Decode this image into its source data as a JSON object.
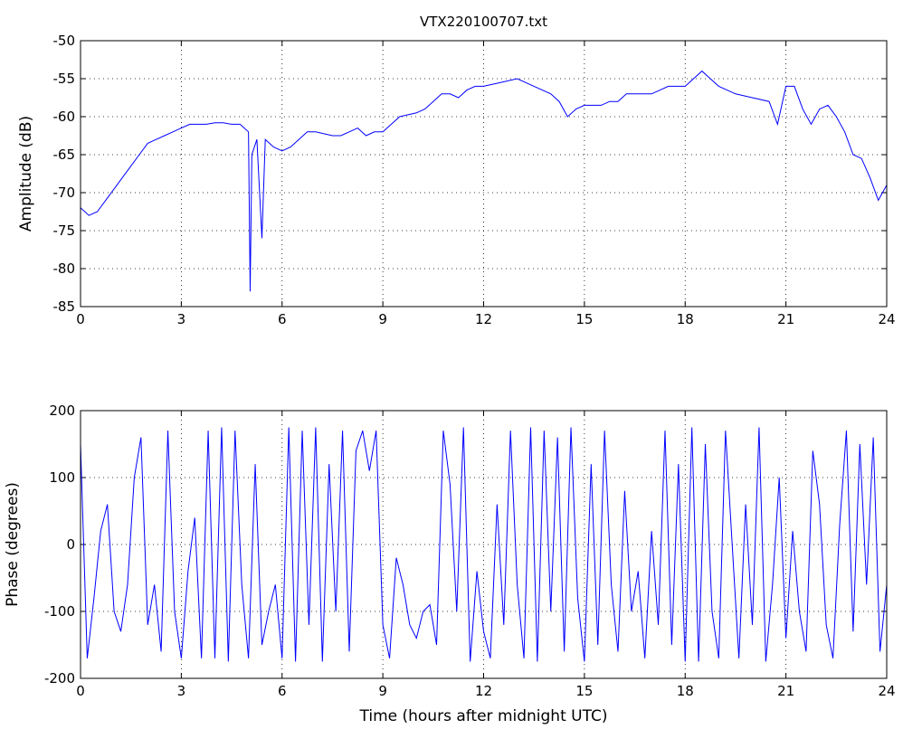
{
  "chart_data": [
    {
      "type": "line",
      "title": "VTX220100707.txt",
      "y_label": "Amplitude (dB)",
      "x": [
        0,
        0.25,
        0.5,
        0.75,
        1,
        1.25,
        1.5,
        1.75,
        2,
        2.25,
        2.5,
        2.75,
        3,
        3.25,
        3.5,
        3.75,
        4,
        4.25,
        4.5,
        4.75,
        5,
        5.05,
        5.1,
        5.25,
        5.4,
        5.5,
        5.75,
        6,
        6.25,
        6.5,
        6.75,
        7,
        7.5,
        7.75,
        8,
        8.25,
        8.5,
        8.75,
        9,
        9.25,
        9.5,
        10,
        10.25,
        10.5,
        10.75,
        11,
        11.25,
        11.5,
        11.75,
        12,
        12.5,
        13,
        13.5,
        14,
        14.25,
        14.5,
        14.75,
        15,
        15.5,
        15.75,
        16,
        16.25,
        16.5,
        17,
        17.5,
        18,
        18.25,
        18.5,
        18.75,
        19,
        19.5,
        20,
        20.5,
        20.75,
        21,
        21.25,
        21.5,
        21.75,
        22,
        22.25,
        22.5,
        22.75,
        23,
        23.25,
        23.5,
        23.75,
        24
      ],
      "series": [
        {
          "name": "amplitude",
          "color": "#0000ff",
          "values": [
            -72,
            -73,
            -72.5,
            -71,
            -69.5,
            -68,
            -66.5,
            -65,
            -63.5,
            -63,
            -62.5,
            -62,
            -61.5,
            -61,
            -61,
            -61,
            -60.8,
            -60.8,
            -61,
            -61,
            -62,
            -83,
            -65,
            -63,
            -76,
            -63,
            -64,
            -64.5,
            -64,
            -63,
            -62,
            -62,
            -62.5,
            -62.5,
            -62,
            -61.5,
            -62.5,
            -62,
            -62,
            -61,
            -60,
            -59.5,
            -59,
            -58,
            -57,
            -57,
            -57.5,
            -56.5,
            -56,
            -56,
            -55.5,
            -55,
            -56,
            -57,
            -58,
            -60,
            -59,
            -58.5,
            -58.5,
            -58,
            -58,
            -57,
            -57,
            -57,
            -56,
            -56,
            -55,
            -54,
            -55,
            -56,
            -57,
            -57.5,
            -58,
            -61,
            -56,
            -56,
            -59,
            -61,
            -59,
            -58.5,
            -60,
            -62,
            -65,
            -65.5,
            -68,
            -71,
            -69
          ]
        }
      ],
      "xlim": [
        0,
        24
      ],
      "xticks": [
        0,
        3,
        6,
        9,
        12,
        15,
        18,
        21,
        24
      ],
      "ylim": [
        -85,
        -50
      ],
      "yticks": [
        -85,
        -80,
        -75,
        -70,
        -65,
        -60,
        -55,
        -50
      ],
      "grid": true
    },
    {
      "type": "line",
      "x_label": "Time (hours after midnight UTC)",
      "y_label": "Phase (degrees)",
      "x": [
        0,
        0.2,
        0.4,
        0.6,
        0.8,
        1,
        1.2,
        1.4,
        1.6,
        1.8,
        2,
        2.2,
        2.4,
        2.6,
        2.8,
        3,
        3.2,
        3.4,
        3.6,
        3.8,
        4,
        4.2,
        4.4,
        4.6,
        4.8,
        5,
        5.2,
        5.4,
        5.6,
        5.8,
        6,
        6.2,
        6.4,
        6.6,
        6.8,
        7,
        7.2,
        7.4,
        7.6,
        7.8,
        8,
        8.2,
        8.4,
        8.6,
        8.8,
        9,
        9.2,
        9.4,
        9.6,
        9.8,
        10,
        10.2,
        10.4,
        10.6,
        10.8,
        11,
        11.2,
        11.4,
        11.6,
        11.8,
        12,
        12.2,
        12.4,
        12.6,
        12.8,
        13,
        13.2,
        13.4,
        13.6,
        13.8,
        14,
        14.2,
        14.4,
        14.6,
        14.8,
        15,
        15.2,
        15.4,
        15.6,
        15.8,
        16,
        16.2,
        16.4,
        16.6,
        16.8,
        17,
        17.2,
        17.4,
        17.6,
        17.8,
        18,
        18.2,
        18.4,
        18.6,
        18.8,
        19,
        19.2,
        19.4,
        19.6,
        19.8,
        20,
        20.2,
        20.4,
        20.6,
        20.8,
        21,
        21.2,
        21.4,
        21.6,
        21.8,
        22,
        22.2,
        22.4,
        22.6,
        22.8,
        23,
        23.2,
        23.4,
        23.6,
        23.8,
        24
      ],
      "series": [
        {
          "name": "phase",
          "color": "#0000ff",
          "values": [
            150,
            -170,
            -80,
            20,
            60,
            -100,
            -130,
            -60,
            100,
            160,
            -120,
            -60,
            -160,
            170,
            -100,
            -170,
            -40,
            40,
            -170,
            170,
            -170,
            175,
            -175,
            170,
            -60,
            -170,
            120,
            -150,
            -100,
            -60,
            -170,
            175,
            -175,
            170,
            -120,
            175,
            -175,
            120,
            -100,
            170,
            -160,
            140,
            170,
            110,
            170,
            -120,
            -170,
            -20,
            -60,
            -120,
            -140,
            -100,
            -90,
            -150,
            170,
            90,
            -100,
            175,
            -175,
            -40,
            -130,
            -170,
            60,
            -120,
            170,
            -60,
            -170,
            175,
            -175,
            170,
            -100,
            160,
            -160,
            175,
            -80,
            -175,
            120,
            -150,
            170,
            -60,
            -160,
            80,
            -100,
            -40,
            -170,
            20,
            -120,
            170,
            -150,
            120,
            -175,
            175,
            -175,
            150,
            -100,
            -170,
            170,
            0,
            -170,
            60,
            -120,
            175,
            -175,
            -60,
            100,
            -140,
            20,
            -100,
            -160,
            140,
            60,
            -120,
            -170,
            30,
            170,
            -130,
            150,
            -60,
            160,
            -160,
            -60
          ]
        }
      ],
      "xlim": [
        0,
        24
      ],
      "xticks": [
        0,
        3,
        6,
        9,
        12,
        15,
        18,
        21,
        24
      ],
      "ylim": [
        -200,
        200
      ],
      "yticks": [
        -200,
        -100,
        0,
        100,
        200
      ],
      "grid": true
    }
  ]
}
